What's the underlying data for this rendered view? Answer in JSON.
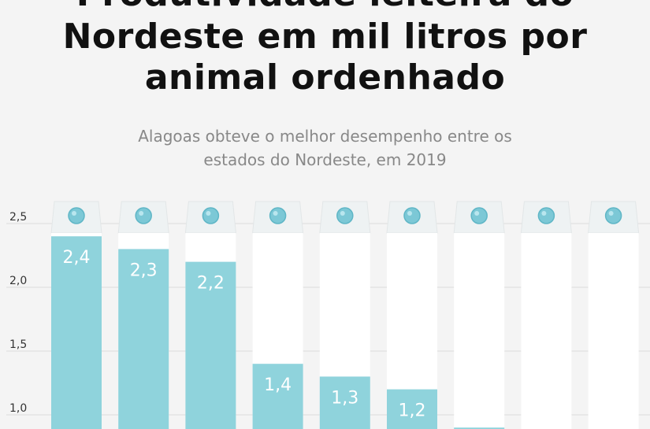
{
  "title_lines": [
    "Produtividade leiteira do",
    "Nordeste em mil litros por",
    "animal ordenhado"
  ],
  "subtitle_lines": [
    "Alagoas obteve o melhor desempenho entre os",
    "estados do Nordeste, em 2019"
  ],
  "colors": {
    "fill": "#8fd3dc",
    "carton": "#ffffff",
    "cap": "#7cc8d6",
    "grid": "#dcdcdc",
    "title": "#111111",
    "subtitle": "#888888"
  },
  "chart_data": {
    "type": "bar",
    "values": [
      2.4,
      2.3,
      2.2,
      1.4,
      1.3,
      1.2,
      0.9,
      null,
      null
    ],
    "value_labels": [
      "2,4",
      "2,3",
      "2,2",
      "1,4",
      "1,3",
      "1,2",
      "",
      "",
      ""
    ],
    "y_ticks": [
      1.0,
      1.5,
      2.0,
      2.5
    ],
    "y_tick_labels": [
      "1,0",
      "1,5",
      "2,0",
      "2,5"
    ],
    "ylim": [
      1.0,
      2.5
    ],
    "grid": true
  }
}
